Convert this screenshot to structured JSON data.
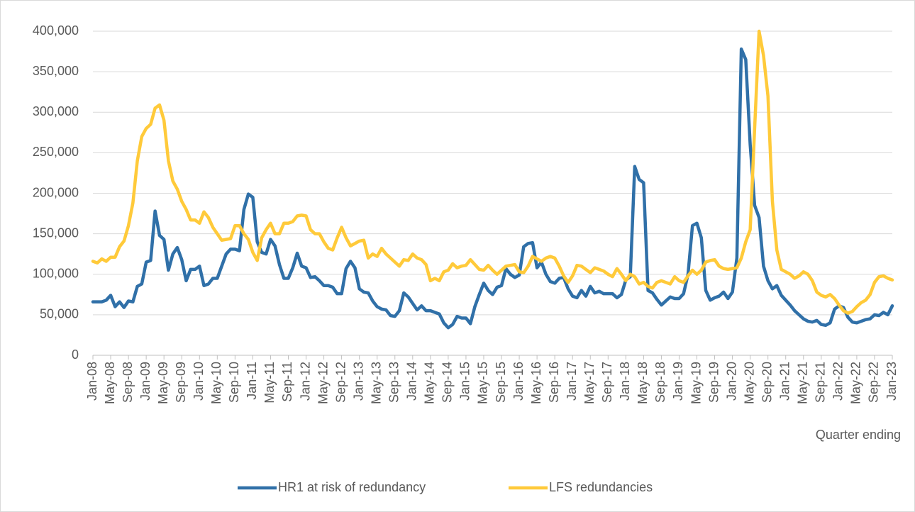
{
  "chart_data": {
    "type": "line",
    "x_label": "Quarter ending",
    "categories": [
      "Jan-08",
      null,
      null,
      null,
      "May-08",
      null,
      null,
      null,
      "Sep-08",
      null,
      null,
      null,
      "Jan-09",
      null,
      null,
      null,
      "May-09",
      null,
      null,
      null,
      "Sep-09",
      null,
      null,
      null,
      "Jan-10",
      null,
      null,
      null,
      "May-10",
      null,
      null,
      null,
      "Sep-10",
      null,
      null,
      null,
      "Jan-11",
      null,
      null,
      null,
      "May-11",
      null,
      null,
      null,
      "Sep-11",
      null,
      null,
      null,
      "Jan-12",
      null,
      null,
      null,
      "May-12",
      null,
      null,
      null,
      "Sep-12",
      null,
      null,
      null,
      "Jan-13",
      null,
      null,
      null,
      "May-13",
      null,
      null,
      null,
      "Sep-13",
      null,
      null,
      null,
      "Jan-14",
      null,
      null,
      null,
      "May-14",
      null,
      null,
      null,
      "Sep-14",
      null,
      null,
      null,
      "Jan-15",
      null,
      null,
      null,
      "May-15",
      null,
      null,
      null,
      "Sep-15",
      null,
      null,
      null,
      "Jan-16",
      null,
      null,
      null,
      "May-16",
      null,
      null,
      null,
      "Sep-16",
      null,
      null,
      null,
      "Jan-17",
      null,
      null,
      null,
      "May-17",
      null,
      null,
      null,
      "Sep-17",
      null,
      null,
      null,
      "Jan-18",
      null,
      null,
      null,
      "May-18",
      null,
      null,
      null,
      "Sep-18",
      null,
      null,
      null,
      "Jan-19",
      null,
      null,
      null,
      "May-19",
      null,
      null,
      null,
      "Sep-19",
      null,
      null,
      null,
      "Jan-20",
      null,
      null,
      null,
      "May-20",
      null,
      null,
      null,
      "Sep-20",
      null,
      null,
      null,
      "Jan-21",
      null,
      null,
      null,
      "May-21",
      null,
      null,
      null,
      "Sep-21",
      null,
      null,
      null,
      "Jan-22",
      null,
      null,
      null,
      "May-22",
      null,
      null,
      null,
      "Sep-22",
      null,
      null,
      null,
      "Jan-23"
    ],
    "series": [
      {
        "name": "HR1 at risk of redundancy",
        "color": "#3070a8",
        "values": [
          66000,
          66000,
          66000,
          68000,
          74000,
          60000,
          66000,
          59000,
          67000,
          66000,
          85000,
          88000,
          115000,
          117000,
          178000,
          148000,
          143000,
          105000,
          125000,
          133000,
          118000,
          92000,
          106000,
          106000,
          110000,
          86000,
          88000,
          95000,
          95000,
          110000,
          125000,
          131000,
          131000,
          129000,
          180000,
          199000,
          195000,
          140000,
          127000,
          125000,
          143000,
          135000,
          112000,
          95000,
          95000,
          108000,
          126000,
          110000,
          108000,
          96000,
          97000,
          92000,
          86000,
          86000,
          84000,
          76000,
          76000,
          107000,
          116000,
          108000,
          82000,
          78000,
          77000,
          67000,
          60000,
          57000,
          56000,
          49000,
          48000,
          55000,
          77000,
          72000,
          64000,
          56000,
          61000,
          55000,
          55000,
          53000,
          51000,
          40000,
          34000,
          38000,
          48000,
          46000,
          46000,
          39000,
          60000,
          75000,
          89000,
          80000,
          75000,
          84000,
          86000,
          107000,
          100000,
          96000,
          99000,
          134000,
          138000,
          139000,
          108000,
          115000,
          100000,
          91000,
          89000,
          95000,
          96000,
          82000,
          73000,
          71000,
          80000,
          73000,
          85000,
          77000,
          79000,
          76000,
          76000,
          76000,
          71000,
          75000,
          93000,
          97000,
          233000,
          217000,
          213000,
          80000,
          77000,
          69000,
          62000,
          67000,
          72000,
          70000,
          70000,
          76000,
          100000,
          160000,
          163000,
          145000,
          80000,
          68000,
          71000,
          73000,
          78000,
          70000,
          78000,
          120000,
          378000,
          365000,
          260000,
          185000,
          170000,
          110000,
          92000,
          82000,
          86000,
          74000,
          68000,
          62000,
          55000,
          50000,
          45000,
          42000,
          41000,
          43000,
          38000,
          37000,
          40000,
          57000,
          61000,
          59000,
          47000,
          41000,
          40000,
          42000,
          44000,
          45000,
          50000,
          49000,
          53000,
          50000,
          61000
        ]
      },
      {
        "name": "LFS redundancies",
        "color": "#ffca3a",
        "values": [
          116000,
          114000,
          119000,
          116000,
          121000,
          121000,
          134000,
          141000,
          160000,
          188000,
          240000,
          270000,
          280000,
          285000,
          305000,
          309000,
          290000,
          240000,
          215000,
          205000,
          190000,
          180000,
          167000,
          167000,
          163000,
          177000,
          170000,
          158000,
          150000,
          142000,
          143000,
          144000,
          160000,
          160000,
          150000,
          143000,
          127000,
          117000,
          145000,
          155000,
          163000,
          150000,
          150000,
          163000,
          163000,
          165000,
          172000,
          173000,
          172000,
          155000,
          150000,
          150000,
          140000,
          132000,
          130000,
          145000,
          158000,
          145000,
          135000,
          138000,
          141000,
          142000,
          120000,
          125000,
          122000,
          132000,
          125000,
          120000,
          115000,
          110000,
          118000,
          117000,
          125000,
          120000,
          118000,
          112000,
          92000,
          95000,
          92000,
          103000,
          105000,
          113000,
          108000,
          110000,
          111000,
          118000,
          112000,
          106000,
          105000,
          111000,
          105000,
          100000,
          105000,
          110000,
          111000,
          112000,
          103000,
          102000,
          110000,
          122000,
          119000,
          116000,
          120000,
          122000,
          120000,
          110000,
          98000,
          90000,
          98000,
          111000,
          110000,
          106000,
          102000,
          108000,
          106000,
          104000,
          100000,
          97000,
          107000,
          100000,
          92000,
          100000,
          97000,
          88000,
          90000,
          85000,
          83000,
          90000,
          92000,
          90000,
          88000,
          97000,
          92000,
          90000,
          98000,
          105000,
          100000,
          105000,
          115000,
          117000,
          118000,
          110000,
          107000,
          106000,
          107000,
          108000,
          120000,
          140000,
          155000,
          280000,
          400000,
          370000,
          320000,
          190000,
          130000,
          106000,
          103000,
          100000,
          95000,
          98000,
          103000,
          100000,
          92000,
          78000,
          74000,
          72000,
          75000,
          70000,
          62000,
          55000,
          52000,
          54000,
          60000,
          65000,
          68000,
          75000,
          90000,
          97000,
          98000,
          95000,
          93000
        ]
      }
    ],
    "ylim": [
      0,
      400000
    ],
    "yticks": [
      0,
      {
        "value": 50000,
        "label": "50,000"
      },
      {
        "value": 100000,
        "label": "100,000"
      },
      {
        "value": 150000,
        "label": "150,000"
      },
      {
        "value": 200000,
        "label": "200,000"
      },
      {
        "value": 250000,
        "label": "250,000"
      },
      {
        "value": 300000,
        "label": "300,000"
      },
      {
        "value": 350000,
        "label": "350,000"
      },
      {
        "value": 400000,
        "label": "400,000"
      }
    ],
    "grid": true,
    "legend": "bottom"
  }
}
